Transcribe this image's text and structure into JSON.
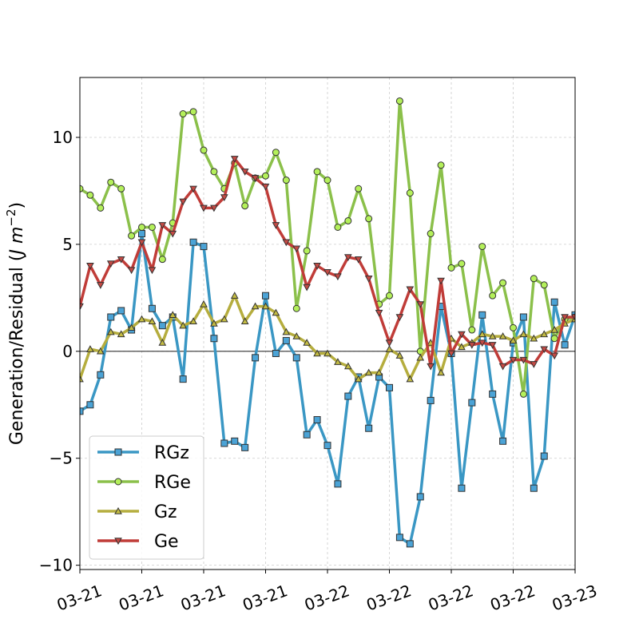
{
  "chart_data": {
    "type": "line",
    "title": "",
    "xlabel": "",
    "ylabel": "Generation/Residual (J m−2)",
    "ylabel_parts": {
      "main": "Generation/Residual (",
      "italic": "J m",
      "sup": "−2",
      "close": ")"
    },
    "ylim": [
      -10.2,
      12.8
    ],
    "x_range": [
      0,
      72
    ],
    "x_ticks": [
      0,
      9,
      18,
      27,
      36,
      45,
      54,
      63,
      72
    ],
    "x_tick_labels": [
      "03-21",
      "03-21",
      "03-21",
      "03-21",
      "03-22",
      "03-22",
      "03-22",
      "03-22",
      "03-23"
    ],
    "y_ticks": [
      -10,
      -5,
      0,
      5,
      10
    ],
    "y_tick_labels": [
      "−10",
      "−5",
      "0",
      "5",
      "10"
    ],
    "grid": true,
    "zero_line": true,
    "legend": {
      "position": "lower-left",
      "entries": [
        "RGz",
        "RGe",
        "Gz",
        "Ge"
      ]
    },
    "x": [
      0,
      1.5,
      3,
      4.5,
      6,
      7.5,
      9,
      10.5,
      12,
      13.5,
      15,
      16.5,
      18,
      19.5,
      21,
      22.5,
      24,
      25.5,
      27,
      28.5,
      30,
      31.5,
      33,
      34.5,
      36,
      37.5,
      39,
      40.5,
      42,
      43.5,
      45,
      46.5,
      48,
      49.5,
      51,
      52.5,
      54,
      55.5,
      57,
      58.5,
      60,
      61.5,
      63,
      64.5,
      66,
      67.5,
      69,
      70.5,
      72
    ],
    "series": [
      {
        "name": "RGz",
        "color": "#3a97c4",
        "marker": "square",
        "marker_fill": "#4ba3d6",
        "values": [
          -2.8,
          -2.5,
          -1.1,
          1.6,
          1.9,
          1.0,
          5.5,
          2.0,
          1.2,
          1.6,
          -1.3,
          5.1,
          4.9,
          0.6,
          -4.3,
          -4.2,
          -4.5,
          -0.3,
          2.6,
          -0.1,
          0.5,
          -0.3,
          -3.9,
          -3.2,
          -4.4,
          -6.2,
          -2.1,
          -1.2,
          -3.6,
          -1.2,
          -1.7,
          -8.7,
          -9.0,
          -6.8,
          -2.3,
          2.1,
          -0.1,
          -6.4,
          -2.4,
          1.7,
          -2.0,
          -4.2,
          0.4,
          1.6,
          -6.4,
          -4.9,
          2.3,
          0.3,
          1.7
        ]
      },
      {
        "name": "RGe",
        "color": "#8bc04a",
        "marker": "circle",
        "marker_fill": "#b4f05a",
        "values": [
          7.6,
          7.3,
          6.7,
          7.9,
          7.6,
          5.4,
          5.8,
          5.8,
          4.3,
          6.0,
          11.1,
          11.2,
          9.4,
          8.4,
          7.6,
          8.8,
          6.8,
          8.1,
          8.2,
          9.3,
          8.0,
          2.0,
          4.7,
          8.4,
          8.0,
          5.8,
          6.1,
          7.6,
          6.2,
          2.2,
          2.6,
          11.7,
          7.4,
          0.0,
          5.5,
          8.7,
          3.9,
          4.1,
          1.0,
          4.9,
          2.6,
          3.2,
          1.1,
          -2.0,
          3.4,
          3.1,
          0.6,
          1.5,
          1.6
        ]
      },
      {
        "name": "Gz",
        "color": "#b5ad3e",
        "marker": "triangle-up",
        "marker_fill": "#c4bc42",
        "values": [
          -1.3,
          0.1,
          0.0,
          0.9,
          0.8,
          1.1,
          1.5,
          1.4,
          0.4,
          1.7,
          1.2,
          1.4,
          2.2,
          1.3,
          1.5,
          2.6,
          1.4,
          2.1,
          2.1,
          1.8,
          0.9,
          0.7,
          0.4,
          -0.1,
          -0.1,
          -0.5,
          -0.7,
          -1.3,
          -1.0,
          -1.0,
          0.1,
          -0.2,
          -1.3,
          -0.3,
          0.4,
          -1.0,
          0.6,
          0.2,
          0.4,
          0.8,
          0.7,
          0.7,
          0.5,
          0.8,
          0.6,
          0.8,
          1.0,
          1.3,
          1.5
        ]
      },
      {
        "name": "Ge",
        "color": "#c03c38",
        "marker": "triangle-down",
        "marker_fill": "#c44a44",
        "values": [
          2.1,
          4.0,
          3.1,
          4.1,
          4.3,
          3.8,
          5.1,
          3.8,
          5.9,
          5.5,
          7.0,
          7.6,
          6.7,
          6.7,
          7.2,
          9.0,
          8.4,
          8.1,
          7.7,
          5.9,
          5.1,
          4.8,
          3.0,
          4.0,
          3.7,
          3.5,
          4.4,
          4.3,
          3.4,
          1.8,
          0.4,
          1.6,
          2.9,
          2.2,
          -0.7,
          3.3,
          -0.1,
          0.8,
          0.3,
          0.4,
          0.3,
          -0.7,
          -0.4,
          -0.4,
          -0.6,
          0.1,
          -0.2,
          1.6,
          1.6
        ]
      }
    ]
  }
}
